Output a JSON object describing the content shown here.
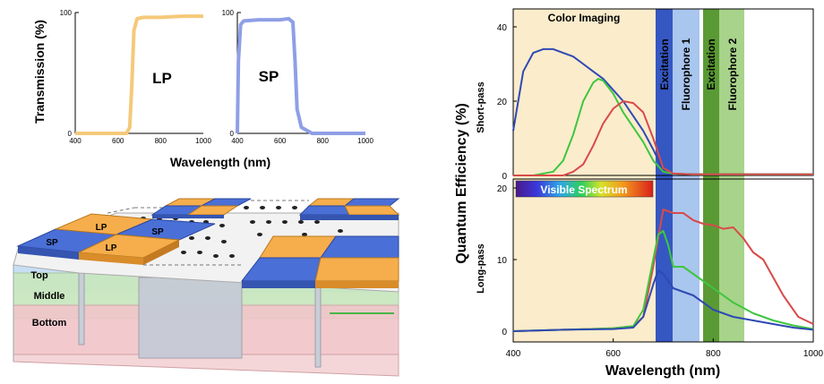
{
  "colors": {
    "lp": "#f5c97a",
    "sp": "#8f9fe6",
    "red": "#d94a4a",
    "green": "#3ec63e",
    "blue": "#2f49b3",
    "imaging_bg": "#fbeccc",
    "excitation_blue": "#3557c2",
    "fluorophore_blue": "#a9c6ee",
    "excitation_green": "#5a9a35",
    "fluorophore_green": "#a8d38a",
    "tile_blue": "#4a6fd6",
    "tile_orange": "#f6ad4c",
    "layer_top": "#c7dff4",
    "layer_middle": "#c9e7c0",
    "layer_bottom": "#f1c5c9"
  },
  "transmission": {
    "ylabel": "Transmission (%)",
    "xlabel": "Wavelength (nm)",
    "lp_label": "LP",
    "sp_label": "SP"
  },
  "device": {
    "layers": [
      "Top",
      "Middle",
      "Bottom"
    ],
    "tiles": [
      "SP",
      "LP",
      "SP",
      "LP"
    ]
  },
  "qe": {
    "ylabel": "Quantum Efficiency (%)",
    "xlabel": "Wavelength (nm)",
    "top_label": "Short-pass",
    "bottom_label": "Long-pass",
    "color_imaging": "Color Imaging",
    "excitation": "Excitation",
    "fluorophore_1": "Fluorophore 1",
    "fluorophore_2": "Fluorophore 2",
    "visible_spectrum": "Visible Spectrum"
  },
  "chart_data": [
    {
      "type": "line",
      "label": "LP",
      "xlabel": "Wavelength (nm)",
      "ylabel": "Transmission (%)",
      "xlim": [
        400,
        1000
      ],
      "ylim": [
        0,
        100
      ],
      "xticks": [
        400,
        600,
        800,
        1000
      ],
      "yticks": [
        0,
        100
      ],
      "series": [
        {
          "x": [
            400,
            600,
            640,
            655,
            665,
            675,
            690,
            720,
            800,
            900,
            1000
          ],
          "y": [
            0,
            0,
            0,
            5,
            40,
            85,
            95,
            96,
            96,
            97,
            97
          ]
        }
      ]
    },
    {
      "type": "line",
      "label": "SP",
      "xlabel": "Wavelength (nm)",
      "ylabel": "Transmission (%)",
      "xlim": [
        400,
        1000
      ],
      "ylim": [
        0,
        100
      ],
      "xticks": [
        400,
        600,
        800,
        1000
      ],
      "yticks": [
        0,
        100
      ],
      "series": [
        {
          "x": [
            400,
            405,
            415,
            430,
            500,
            600,
            640,
            660,
            670,
            680,
            700,
            750,
            800,
            900,
            1000
          ],
          "y": [
            0,
            60,
            90,
            93,
            94,
            94,
            95,
            92,
            60,
            20,
            5,
            0,
            0,
            0,
            0
          ]
        }
      ]
    },
    {
      "type": "line",
      "ylabel": "Short-pass",
      "xlim": [
        400,
        1000
      ],
      "ylim": [
        0,
        40
      ],
      "yticks": [
        0,
        20,
        40
      ],
      "series": [
        {
          "x": [
            400,
            420,
            440,
            460,
            480,
            500,
            520,
            540,
            560,
            580,
            600,
            620,
            640,
            660,
            680,
            700,
            720,
            760,
            1000
          ],
          "y": [
            12,
            28,
            33,
            34,
            34,
            33,
            32,
            30,
            28,
            26,
            23,
            20,
            16,
            12,
            7,
            1.5,
            0.5,
            0.3,
            0.3
          ]
        },
        {
          "x": [
            400,
            440,
            480,
            500,
            520,
            540,
            560,
            570,
            580,
            600,
            620,
            640,
            660,
            680,
            700,
            720,
            760,
            1000
          ],
          "y": [
            0,
            0,
            1,
            4,
            11,
            20,
            25,
            26,
            25.5,
            22,
            17,
            13,
            9,
            4,
            1,
            0.5,
            0.3,
            0.3
          ]
        },
        {
          "x": [
            400,
            500,
            520,
            540,
            560,
            580,
            600,
            620,
            640,
            660,
            680,
            700,
            720,
            760,
            1000
          ],
          "y": [
            0,
            0,
            1,
            3,
            8,
            14,
            18,
            20,
            19.5,
            17,
            10,
            2,
            0.5,
            0.3,
            0.3
          ]
        }
      ]
    },
    {
      "type": "line",
      "xlabel": "Wavelength (nm)",
      "ylabel": "Long-pass",
      "xlim": [
        400,
        1000
      ],
      "ylim": [
        0,
        20
      ],
      "xticks": [
        400,
        600,
        800,
        1000
      ],
      "yticks": [
        0,
        10,
        20
      ],
      "series": [
        {
          "x": [
            400,
            500,
            600,
            640,
            660,
            680,
            700,
            720,
            740,
            760,
            780,
            800,
            820,
            840,
            860,
            880,
            900,
            940,
            970,
            1000
          ],
          "y": [
            0,
            0.2,
            0.4,
            0.7,
            2,
            9,
            17,
            16.5,
            16.5,
            15.5,
            15,
            14.8,
            14.3,
            14.5,
            13,
            11,
            10,
            5,
            2,
            1
          ]
        },
        {
          "x": [
            400,
            500,
            600,
            640,
            660,
            680,
            690,
            700,
            710,
            720,
            740,
            760,
            780,
            800,
            840,
            880,
            920,
            960,
            1000
          ],
          "y": [
            0,
            0.2,
            0.4,
            0.7,
            3,
            10,
            13.5,
            14,
            12,
            9,
            9,
            8,
            7,
            6,
            4,
            2.5,
            1.5,
            0.8,
            0.3
          ]
        },
        {
          "x": [
            400,
            500,
            600,
            640,
            660,
            680,
            690,
            700,
            710,
            720,
            740,
            760,
            780,
            800,
            840,
            880,
            920,
            960,
            1000
          ],
          "y": [
            0,
            0.2,
            0.3,
            0.5,
            2,
            6.5,
            8.5,
            8,
            7,
            6,
            5.5,
            5,
            4,
            3,
            2,
            1.5,
            1,
            0.5,
            0.2
          ]
        }
      ]
    }
  ]
}
